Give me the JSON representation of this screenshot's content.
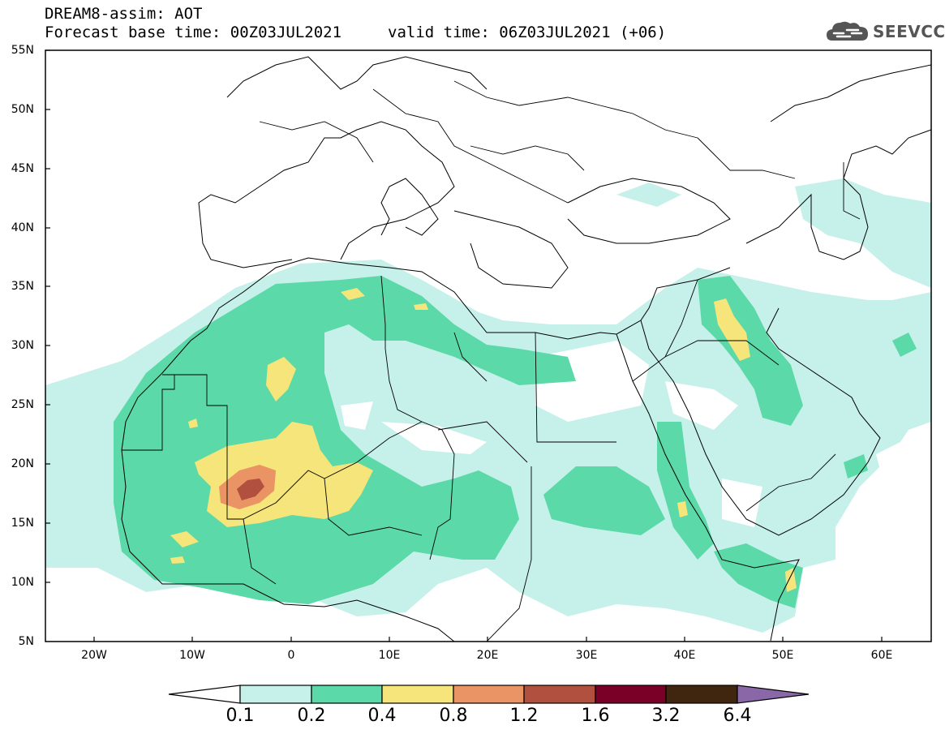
{
  "header": {
    "title": "DREAM8-assim: AOT",
    "base_time": "Forecast base time: 00Z03JUL2021",
    "valid_time": "valid time: 06Z03JUL2021 (+06)"
  },
  "logo": {
    "text": "SEEVCCC",
    "icon": "cloud-icon"
  },
  "map": {
    "lat_labels": [
      "55N",
      "50N",
      "45N",
      "40N",
      "35N",
      "30N",
      "25N",
      "20N",
      "15N",
      "10N",
      "5N"
    ],
    "lon_labels": [
      "20W",
      "10W",
      "0",
      "10E",
      "20E",
      "30E",
      "40E",
      "50E",
      "60E"
    ],
    "lat_range": [
      5,
      55
    ],
    "lon_range": [
      -25,
      65
    ]
  },
  "colorbar": {
    "labels": [
      "0.1",
      "0.2",
      "0.4",
      "0.8",
      "1.2",
      "1.6",
      "3.2",
      "6.4"
    ],
    "colors": [
      "#ffffff",
      "#c6f0ea",
      "#5cd9a8",
      "#f6e57a",
      "#ea9465",
      "#b1503e",
      "#7b0028",
      "#40260f",
      "#8a68a8"
    ]
  }
}
